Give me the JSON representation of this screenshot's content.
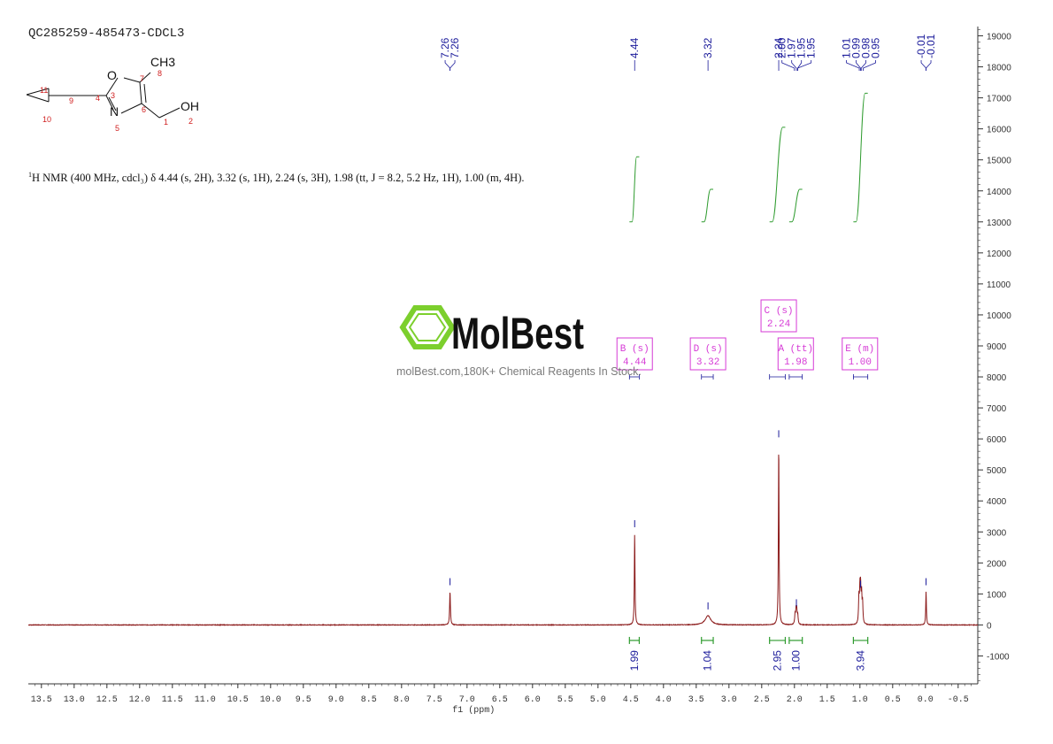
{
  "sample_id": "QC285259-485473-CDCL3",
  "nmr_description": {
    "nucleus_sup": "1",
    "text": "H NMR (400 MHz, cdcl₃) δ 4.44 (s, 2H), 3.32 (s, 1H), 2.24 (s, 3H), 1.98 (tt, J = 8.2, 5.2 Hz, 1H), 1.00 (m, 4H)."
  },
  "watermark": {
    "brand": "MolBest",
    "tagline": "molBest.com,180K+ Chemical Reagents In Stock."
  },
  "structure": {
    "atoms": [
      {
        "sym": "O",
        "num": "3"
      },
      {
        "sym": "",
        "num": "7"
      },
      {
        "sym": "CH3",
        "num": "8"
      },
      {
        "sym": "",
        "num": "4"
      },
      {
        "sym": "",
        "num": "6"
      },
      {
        "sym": "N",
        "num": "5"
      },
      {
        "sym": "",
        "num": "9"
      },
      {
        "sym": "",
        "num": "11"
      },
      {
        "sym": "",
        "num": "10"
      },
      {
        "sym": "",
        "num": "1"
      },
      {
        "sym": "OH",
        "num": "2"
      }
    ]
  },
  "colors": {
    "spectrum": "#8b1a1a",
    "peak_marker": "#1a1a9a",
    "integral": "#2e9b2e",
    "multiplet_box": "#d63ad6",
    "axis": "#333333",
    "logo": "#7ccf2d"
  },
  "chart_data": {
    "type": "line",
    "title": "",
    "xlabel": "f1 (ppm)",
    "ylabel": "",
    "xlim": [
      13.7,
      -0.8
    ],
    "ylim": [
      -1900,
      19300
    ],
    "x_ticks": [
      "13.5",
      "13.0",
      "12.5",
      "12.0",
      "11.5",
      "11.0",
      "10.5",
      "10.0",
      "9.5",
      "9.0",
      "8.5",
      "8.0",
      "7.5",
      "7.0",
      "6.5",
      "6.0",
      "5.5",
      "5.0",
      "4.5",
      "4.0",
      "3.5",
      "3.0",
      "2.5",
      "2.0",
      "1.5",
      "1.0",
      "0.5",
      "0.0",
      "-0.5"
    ],
    "y_ticks": [
      "19000",
      "18000",
      "17000",
      "16000",
      "15000",
      "14000",
      "13000",
      "12000",
      "11000",
      "10000",
      "9000",
      "8000",
      "7000",
      "6000",
      "5000",
      "4000",
      "3000",
      "2000",
      "1000",
      "0",
      "-1000"
    ],
    "series": [
      {
        "values": [
          {
            "x": 7.26,
            "y": 1080,
            "w": 0.007
          },
          {
            "x": 4.44,
            "y": 2950,
            "w": 0.006
          },
          {
            "x": 3.32,
            "y": 300,
            "w": 0.05
          },
          {
            "x": 2.24,
            "y": 5850,
            "w": 0.006
          },
          {
            "x": 1.99,
            "y": 330,
            "w": 0.007
          },
          {
            "x": 1.975,
            "y": 420,
            "w": 0.007
          },
          {
            "x": 1.965,
            "y": 400,
            "w": 0.007
          },
          {
            "x": 1.95,
            "y": 310,
            "w": 0.007
          },
          {
            "x": 1.015,
            "y": 850,
            "w": 0.007
          },
          {
            "x": 1.0,
            "y": 950,
            "w": 0.007
          },
          {
            "x": 0.99,
            "y": 980,
            "w": 0.007
          },
          {
            "x": 0.975,
            "y": 880,
            "w": 0.007
          },
          {
            "x": 0.96,
            "y": 650,
            "w": 0.007
          },
          {
            "x": -0.01,
            "y": 1080,
            "w": 0.006
          }
        ]
      }
    ],
    "peak_labels": [
      {
        "group": [
          "7.26",
          "7.26"
        ],
        "x": [
          7.26,
          7.26
        ]
      },
      {
        "group": [
          "4.44"
        ],
        "x": [
          4.44
        ]
      },
      {
        "group": [
          "3.32"
        ],
        "x": [
          3.32
        ]
      },
      {
        "group": [
          "2.24"
        ],
        "x": [
          2.24
        ]
      },
      {
        "group": [
          "2.00",
          "1.97",
          "1.95",
          "1.95"
        ],
        "x": [
          2.0,
          1.97,
          1.95,
          1.95
        ]
      },
      {
        "group": [
          "1.01",
          "0.99",
          "0.98",
          "0.95"
        ],
        "x": [
          1.01,
          0.99,
          0.98,
          0.95
        ]
      },
      {
        "group": [
          "-0.01",
          "-0.01"
        ],
        "x": [
          -0.01,
          -0.01
        ]
      }
    ],
    "peak_markers": [
      {
        "x": 7.26,
        "y": 1280
      },
      {
        "x": 4.44,
        "y": 3150
      },
      {
        "x": 3.32,
        "y": 500
      },
      {
        "x": 2.24,
        "y": 6050
      },
      {
        "x": 1.97,
        "y": 600
      },
      {
        "x": 0.99,
        "y": 1200
      },
      {
        "x": -0.01,
        "y": 1280
      }
    ],
    "integrals": [
      {
        "from": 4.52,
        "to": 4.37,
        "value": "1.99",
        "curve_start": 13000,
        "curve_end": 15100
      },
      {
        "from": 3.42,
        "to": 3.24,
        "value": "1.04",
        "curve_start": 13000,
        "curve_end": 14050
      },
      {
        "from": 2.38,
        "to": 2.14,
        "value": "2.95",
        "curve_start": 13000,
        "curve_end": 16050
      },
      {
        "from": 2.08,
        "to": 1.88,
        "value": "1.00",
        "curve_start": 13000,
        "curve_end": 14050
      },
      {
        "from": 1.1,
        "to": 0.88,
        "value": "3.94",
        "curve_start": 13000,
        "curve_end": 17150
      }
    ],
    "multiplets": [
      {
        "name": "B (s)",
        "shift": "4.44",
        "x": 4.44,
        "range": [
          4.52,
          4.37
        ]
      },
      {
        "name": "D (s)",
        "shift": "3.32",
        "x": 3.32,
        "range": [
          3.42,
          3.24
        ]
      },
      {
        "name": "C (s)",
        "shift": "2.24",
        "x": 2.24,
        "range": [
          2.38,
          2.14
        ],
        "raised": true
      },
      {
        "name": "A (tt)",
        "shift": "1.98",
        "x": 1.98,
        "range": [
          2.08,
          1.88
        ]
      },
      {
        "name": "E (m)",
        "shift": "1.00",
        "x": 1.0,
        "range": [
          1.1,
          0.88
        ]
      }
    ]
  }
}
